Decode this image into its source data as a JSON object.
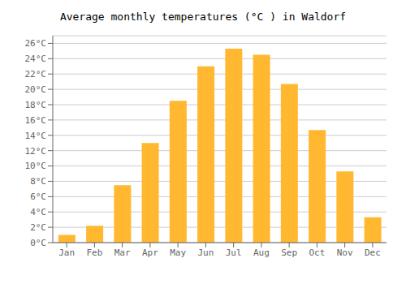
{
  "chart_data": {
    "type": "bar",
    "title": "Average monthly temperatures (°C ) in Waldorf",
    "categories": [
      "Jan",
      "Feb",
      "Mar",
      "Apr",
      "May",
      "Jun",
      "Jul",
      "Aug",
      "Sep",
      "Oct",
      "Nov",
      "Dec"
    ],
    "values": [
      1.0,
      2.2,
      7.5,
      13.0,
      18.5,
      23.0,
      25.3,
      24.5,
      20.7,
      14.7,
      9.3,
      3.3
    ],
    "color": "#FFB830",
    "ylim": [
      0,
      27
    ],
    "yticks": [
      {
        "value": 0,
        "label": "0°C"
      },
      {
        "value": 2,
        "label": "2°C"
      },
      {
        "value": 4,
        "label": "4°C"
      },
      {
        "value": 6,
        "label": "6°C"
      },
      {
        "value": 8,
        "label": "8°C"
      },
      {
        "value": 10,
        "label": "10°C"
      },
      {
        "value": 12,
        "label": "12°C"
      },
      {
        "value": 14,
        "label": "14°C"
      },
      {
        "value": 16,
        "label": "16°C"
      },
      {
        "value": 18,
        "label": "18°C"
      },
      {
        "value": 20,
        "label": "20°C"
      },
      {
        "value": 22,
        "label": "22°C"
      },
      {
        "value": 24,
        "label": "24°C"
      },
      {
        "value": 26,
        "label": "26°C"
      }
    ],
    "grid": true
  }
}
